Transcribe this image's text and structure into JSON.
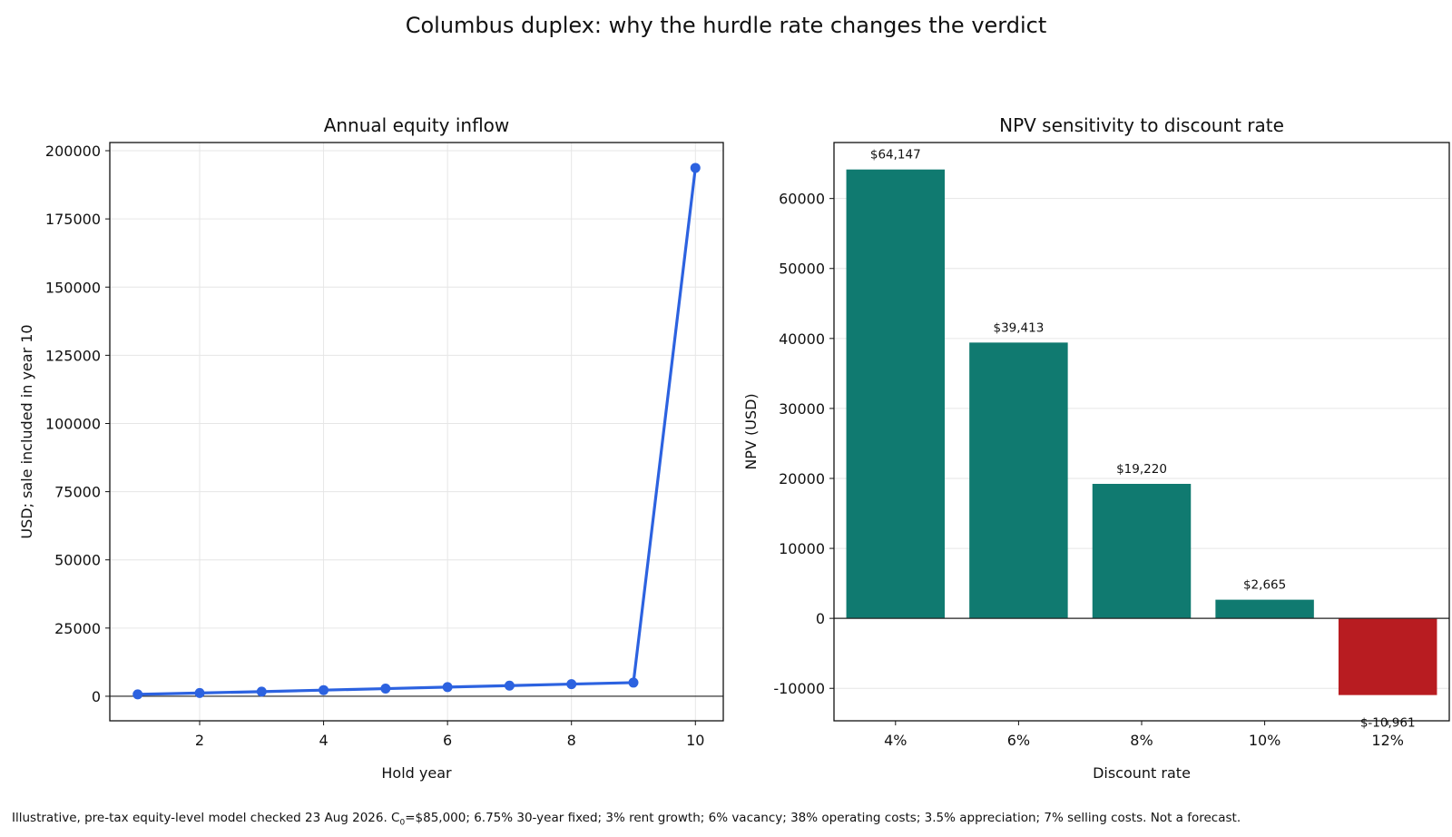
{
  "figure": {
    "title": "Columbus duplex: why the hurdle rate changes the verdict",
    "footnote": {
      "before_sub": "Illustrative, pre-tax equity-level model checked 23 Aug 2026. C",
      "sub": "0",
      "after_sub": "=$85,000; 6.75% 30-year fixed; 3% rent growth; 6% vacancy; 38% operating costs; 3.5% appreciation; 7% selling costs. Not a forecast."
    }
  },
  "chart_data": [
    {
      "type": "line",
      "title": "Annual equity inflow",
      "xlabel": "Hold year",
      "ylabel": "USD; sale included in year 10",
      "x": [
        1,
        2,
        3,
        4,
        5,
        6,
        7,
        8,
        9,
        10
      ],
      "series": [
        {
          "values": [
            700,
            1200,
            1700,
            2250,
            2800,
            3350,
            3900,
            4450,
            5000,
            193700
          ],
          "color": "#2c62e0",
          "marker": "circle"
        }
      ],
      "xlim": [
        0.55,
        10.45
      ],
      "ylim": [
        -9000,
        203000
      ],
      "xticks": [
        2,
        4,
        6,
        8,
        10
      ],
      "yticks": [
        0,
        25000,
        50000,
        75000,
        100000,
        125000,
        150000,
        175000,
        200000
      ],
      "grid": true,
      "zero_line": true
    },
    {
      "type": "bar",
      "title": "NPV sensitivity to discount rate",
      "xlabel": "Discount rate",
      "ylabel": "NPV (USD)",
      "categories": [
        "4%",
        "6%",
        "8%",
        "10%",
        "12%"
      ],
      "values": [
        64147,
        39413,
        19220,
        2665,
        -10961
      ],
      "data_labels": [
        "$64,147",
        "$39,413",
        "$19,220",
        "$2,665",
        "$-10,961"
      ],
      "colors": {
        "positive": "#107a70",
        "negative": "#b81c21"
      },
      "ylim": [
        -14640,
        68000
      ],
      "yticks": [
        -10000,
        0,
        10000,
        20000,
        30000,
        40000,
        50000,
        60000
      ],
      "grid": true,
      "zero_line": true
    }
  ]
}
